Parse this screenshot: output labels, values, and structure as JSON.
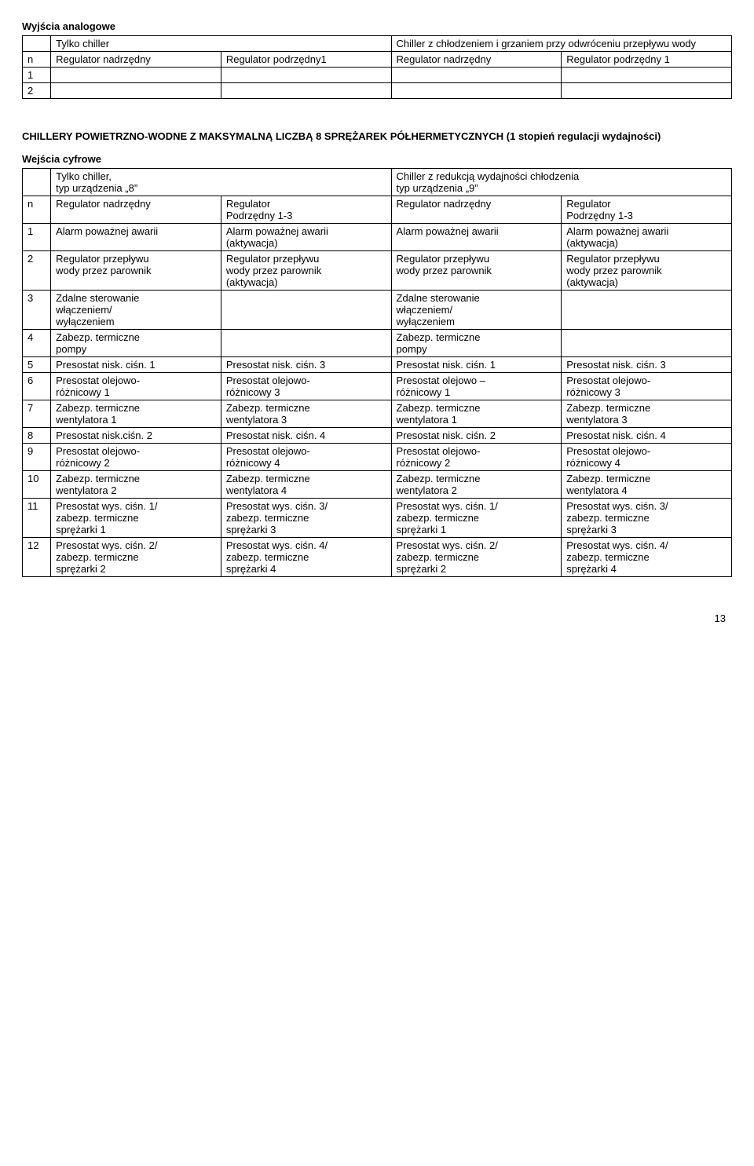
{
  "section1": {
    "title": "Wyjścia analogowe",
    "header_row1_col1": "",
    "header_row1_col2": "Tylko  chiller",
    "header_row1_col3": "Chiller z chłodzeniem i grzaniem przy odwróceniu przepływu wody",
    "header_row2": {
      "c0": "n",
      "c1": "Regulator nadrzędny",
      "c2": "Regulator podrzędny1",
      "c3": "Regulator nadrzędny",
      "c4": "Regulator podrzędny 1"
    },
    "row_numbers": [
      "1",
      "2"
    ]
  },
  "section2": {
    "title": "CHILLERY POWIETRZNO-WODNE Z MAKSYMALNĄ LICZBĄ 8 SPRĘŻAREK PÓŁHERMETYCZNYCH  (1 stopień regulacji wydajności)",
    "subtitle": "Wejścia cyfrowe",
    "header_row1": {
      "c0": "",
      "c1": "Tylko chiller,\ntyp urządzenia  „8”",
      "c2": "Chiller z redukcją wydajności chłodzenia\ntyp urządzenia  „9”"
    },
    "header_row2": {
      "c0": "n",
      "c1": "Regulator nadrzędny",
      "c2": "Regulator\nPodrzędny 1-3",
      "c3": "Regulator nadrzędny",
      "c4": "Regulator\nPodrzędny 1-3"
    },
    "rows": [
      {
        "n": "1",
        "c1": "Alarm poważnej awarii",
        "c2": "Alarm poważnej awarii\n(aktywacja)",
        "c3": "Alarm poważnej awarii",
        "c4": "Alarm poważnej awarii\n(aktywacja)"
      },
      {
        "n": "2",
        "c1": "Regulator przepływu\nwody przez parownik",
        "c2": "Regulator przepływu\nwody przez parownik\n(aktywacja)",
        "c3": "Regulator przepływu\nwody przez parownik",
        "c4": "Regulator przepływu\nwody przez parownik\n(aktywacja)"
      },
      {
        "n": "3",
        "c1": "Zdalne sterowanie\nwłączeniem/\nwyłączeniem",
        "c2": "",
        "c3": "Zdalne sterowanie\nwłączeniem/\nwyłączeniem",
        "c4": ""
      },
      {
        "n": "4",
        "c1": "Zabezp. termiczne\npompy",
        "c2": "",
        "c3": "Zabezp. termiczne\npompy",
        "c4": ""
      },
      {
        "n": "5",
        "c1": "Presostat nisk. ciśn. 1",
        "c2": "Presostat nisk. ciśn. 3",
        "c3": "Presostat nisk. ciśn. 1",
        "c4": "Presostat nisk. ciśn. 3"
      },
      {
        "n": "6",
        "c1": "Presostat olejowo-\nróżnicowy 1",
        "c2": "Presostat olejowo-\nróżnicowy 3",
        "c3": "Presostat olejowo –\nróżnicowy 1",
        "c4": "Presostat olejowo-\nróżnicowy 3"
      },
      {
        "n": "7",
        "c1": "Zabezp. termiczne\nwentylatora 1",
        "c2": "Zabezp. termiczne\nwentylatora 3",
        "c3": "Zabezp. termiczne\nwentylatora 1",
        "c4": "Zabezp. termiczne\nwentylatora 3"
      },
      {
        "n": "8",
        "c1": "Presostat nisk.ciśn. 2",
        "c2": "Presostat nisk. ciśn. 4",
        "c3": "Presostat nisk. ciśn. 2",
        "c4": "Presostat nisk. ciśn. 4"
      },
      {
        "n": "9",
        "c1": "Presostat olejowo-\nróżnicowy 2",
        "c2": "Presostat olejowo-\nróżnicowy 4",
        "c3": "Presostat olejowo-\nróżnicowy 2",
        "c4": "Presostat olejowo-\nróżnicowy 4"
      },
      {
        "n": "10",
        "c1": "Zabezp. termiczne\nwentylatora 2",
        "c2": "Zabezp. termiczne\nwentylatora 4",
        "c3": "Zabezp. termiczne\nwentylatora 2",
        "c4": "Zabezp. termiczne\nwentylatora 4"
      },
      {
        "n": "11",
        "c1": "Presostat wys. ciśn. 1/\nzabezp. termiczne\nsprężarki 1",
        "c2": "Presostat wys. ciśn. 3/\nzabezp. termiczne\nsprężarki 3",
        "c3": "Presostat wys. ciśn. 1/\nzabezp. termiczne\nsprężarki 1",
        "c4": "Presostat wys. ciśn. 3/\nzabezp. termiczne\nsprężarki 3"
      },
      {
        "n": "12",
        "c1": "Presostat wys. ciśn. 2/\nzabezp. termiczne\nsprężarki 2",
        "c2": "Presostat wys. ciśn. 4/\nzabezp. termiczne\nsprężarki 4",
        "c3": "Presostat wys. ciśn. 2/\nzabezp. termiczne\nsprężarki 2",
        "c4": "Presostat wys. ciśn. 4/\nzabezp. termiczne\nsprężarki 4"
      }
    ]
  },
  "page_number": "13",
  "layout": {
    "col_widths_t1": [
      "4%",
      "24%",
      "24%",
      "24%",
      "24%"
    ],
    "col_widths_t2": [
      "4%",
      "24%",
      "24%",
      "24%",
      "24%"
    ]
  }
}
